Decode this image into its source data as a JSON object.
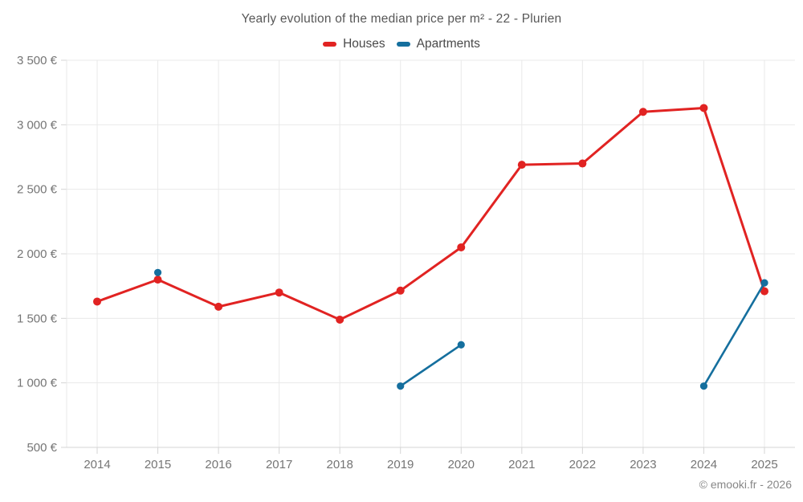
{
  "page": {
    "copyright": "© emooki.fr - 2026"
  },
  "chart_data": {
    "type": "line",
    "title": "Yearly evolution of the median price per m² - 22 - Plurien",
    "x": [
      2014,
      2015,
      2016,
      2017,
      2018,
      2019,
      2020,
      2021,
      2022,
      2023,
      2024,
      2025
    ],
    "series": [
      {
        "name": "Houses",
        "color": "#e12322",
        "values": [
          1630,
          1800,
          1590,
          1700,
          1490,
          1715,
          2050,
          2690,
          2700,
          3100,
          3130,
          1710
        ]
      },
      {
        "name": "Apartments",
        "color": "#156f9e",
        "values": [
          null,
          1855,
          null,
          null,
          null,
          975,
          1295,
          null,
          null,
          null,
          975,
          1775
        ]
      }
    ],
    "ylim": [
      500,
      3500
    ],
    "ytick_step": 500,
    "y_suffix": " €",
    "grid": true,
    "legend_position": "top",
    "grid_color": "#e9e9e9",
    "axis_color": "#d4d4d4",
    "tick_label_color": "#757575"
  }
}
